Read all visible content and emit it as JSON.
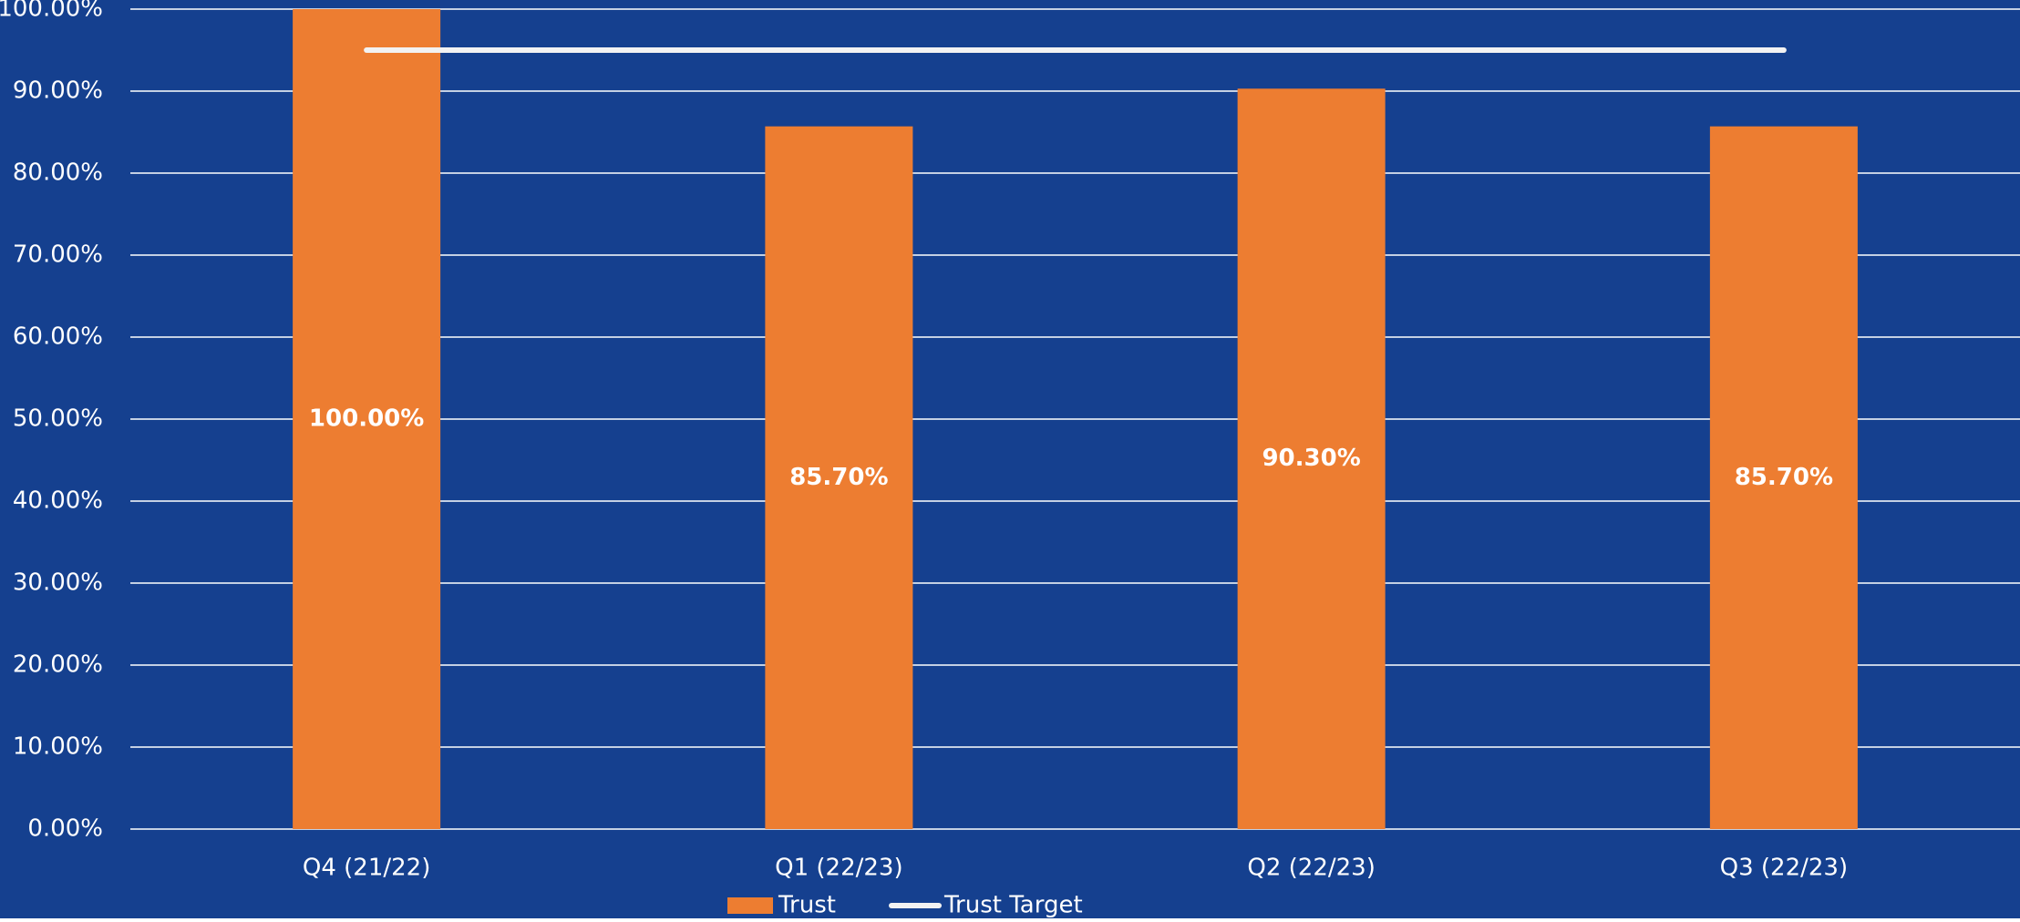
{
  "chart_data": {
    "type": "bar",
    "categories": [
      "Q4 (21/22)",
      "Q1 (22/23)",
      "Q2 (22/23)",
      "Q3 (22/23)"
    ],
    "series": [
      {
        "name": "Trust",
        "type": "bar",
        "color": "#ed7d31",
        "values": [
          100,
          85.7,
          90.3,
          85.7
        ],
        "value_labels": [
          "100.00%",
          "85.70%",
          "90.30%",
          "85.70%"
        ]
      },
      {
        "name": "Trust Target",
        "type": "line",
        "color": "#f2f2f2",
        "values": [
          95,
          95,
          95,
          95
        ]
      }
    ],
    "ylim": [
      0,
      100
    ],
    "yticks": [
      {
        "value": 0,
        "label": "0.00%"
      },
      {
        "value": 10,
        "label": "10.00%"
      },
      {
        "value": 20,
        "label": "20.00%"
      },
      {
        "value": 30,
        "label": "30.00%"
      },
      {
        "value": 40,
        "label": "40.00%"
      },
      {
        "value": 50,
        "label": "50.00%"
      },
      {
        "value": 60,
        "label": "60.00%"
      },
      {
        "value": 70,
        "label": "70.00%"
      },
      {
        "value": 80,
        "label": "80.00%"
      },
      {
        "value": 90,
        "label": "90.00%"
      },
      {
        "value": 100,
        "label": "100.00%"
      }
    ],
    "grid": true,
    "legend": "bottom",
    "background": "#15408f"
  }
}
